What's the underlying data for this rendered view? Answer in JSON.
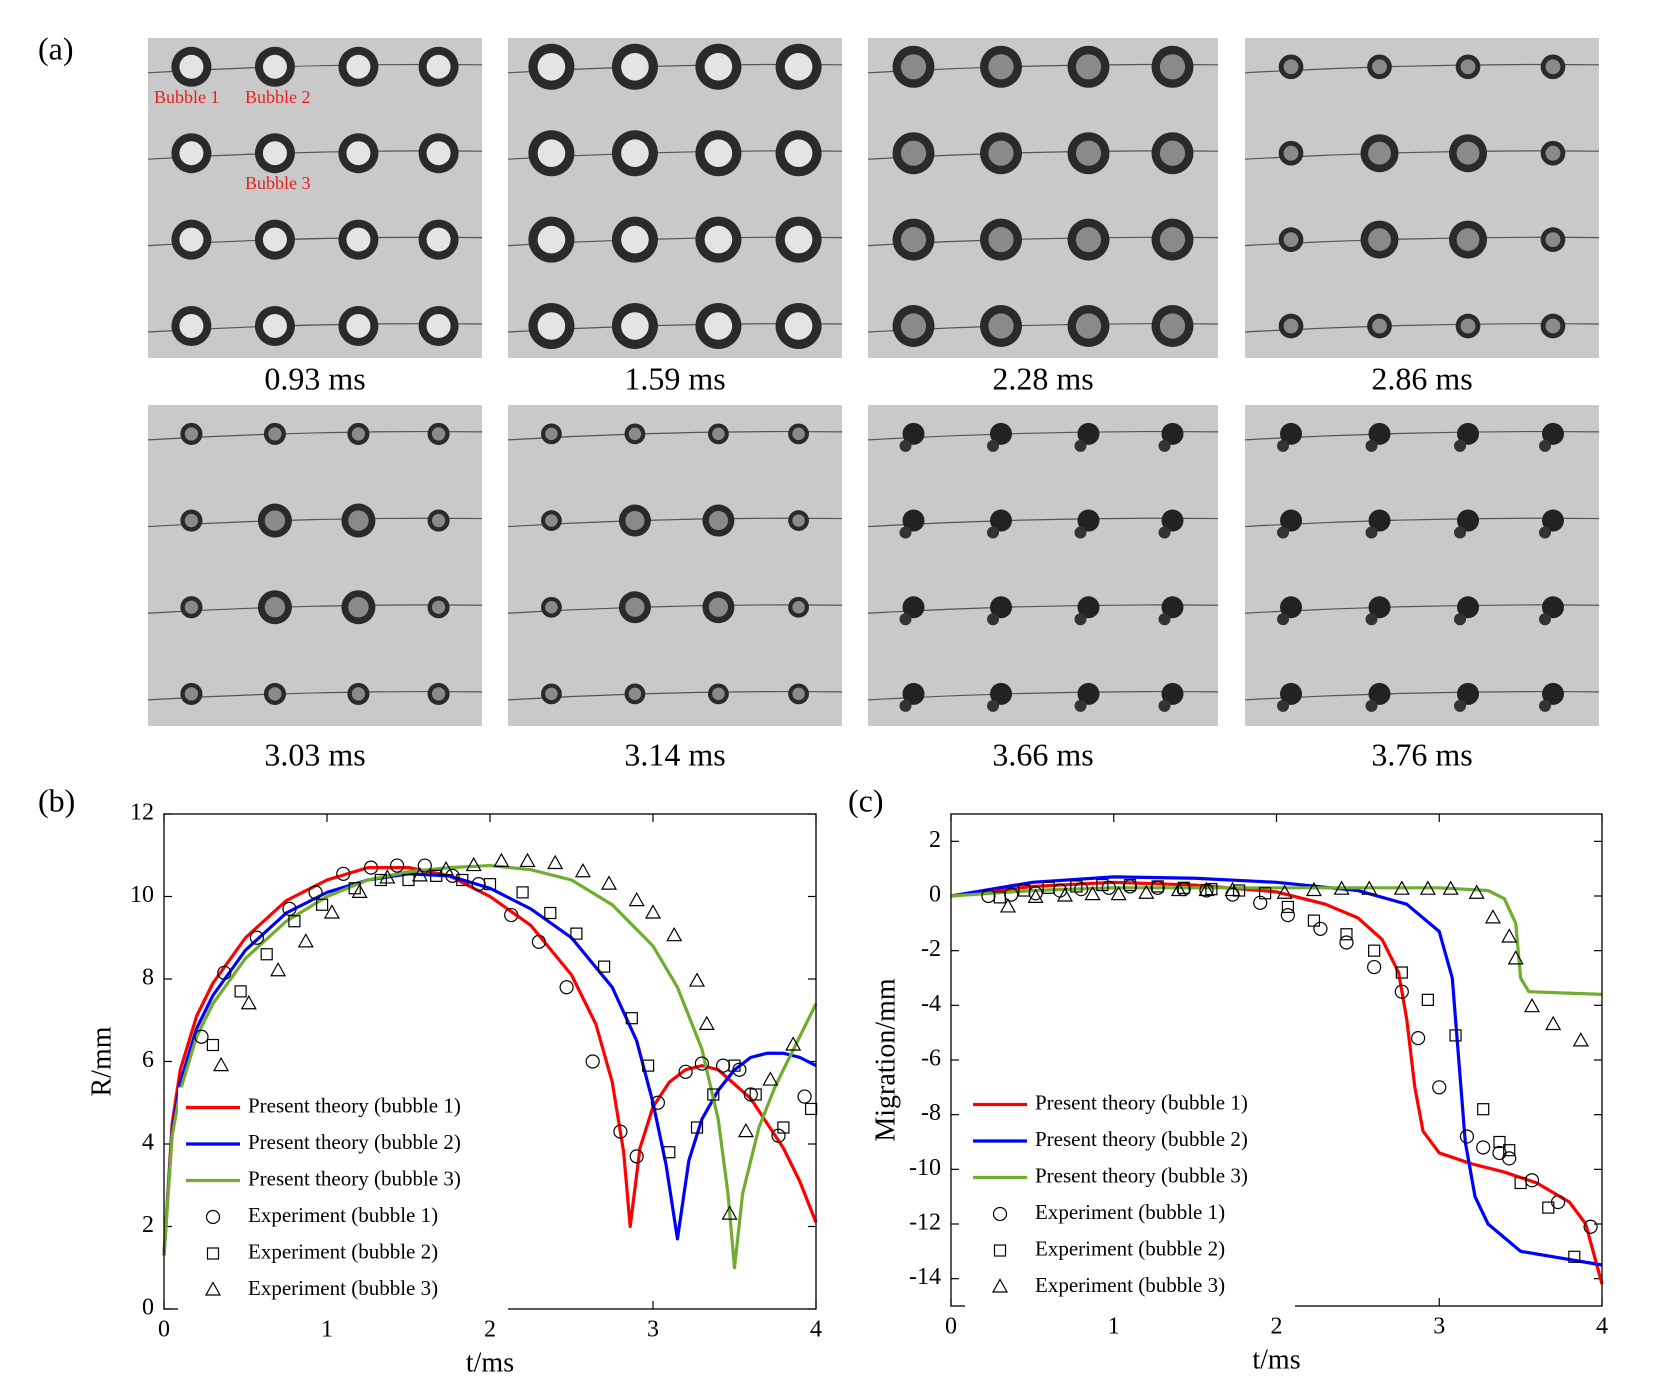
{
  "panel_a": {
    "label": "(a)",
    "times": [
      "0.93 ms",
      "1.59 ms",
      "2.28 ms",
      "2.86 ms",
      "3.03 ms",
      "3.14 ms",
      "3.66 ms",
      "3.76 ms"
    ],
    "annotations": [
      "Bubble 1",
      "Bubble 2",
      "Bubble 3"
    ]
  },
  "chart_data": [
    {
      "type": "line",
      "panel_label": "(b)",
      "xlabel": "t/ms",
      "ylabel": "R/mm",
      "xlim": [
        0,
        4
      ],
      "ylim": [
        0,
        12
      ],
      "xticks": [
        0,
        1,
        2,
        3,
        4
      ],
      "yticks": [
        0,
        2,
        4,
        6,
        8,
        10,
        12
      ],
      "legend": "lower left",
      "series": [
        {
          "name": "Present theory (bubble 1)",
          "type": "line",
          "color": "#ff0000",
          "x": [
            0,
            0.05,
            0.1,
            0.2,
            0.3,
            0.5,
            0.75,
            1,
            1.25,
            1.5,
            1.75,
            2,
            2.25,
            2.5,
            2.65,
            2.75,
            2.82,
            2.86,
            2.92,
            3.0,
            3.1,
            3.2,
            3.3,
            3.4,
            3.6,
            3.8,
            3.9,
            4.0
          ],
          "values": [
            1.3,
            4.5,
            5.8,
            7.1,
            7.9,
            9.0,
            9.9,
            10.4,
            10.7,
            10.7,
            10.5,
            10.0,
            9.3,
            8.1,
            6.9,
            5.5,
            3.8,
            2.0,
            3.9,
            4.9,
            5.5,
            5.8,
            5.9,
            5.8,
            5.1,
            3.9,
            3.1,
            2.1
          ]
        },
        {
          "name": "Present theory (bubble 2)",
          "type": "line",
          "color": "#0000ff",
          "x": [
            0,
            0.05,
            0.1,
            0.2,
            0.3,
            0.5,
            0.75,
            1,
            1.25,
            1.5,
            1.75,
            2,
            2.25,
            2.5,
            2.75,
            2.9,
            3.0,
            3.08,
            3.15,
            3.22,
            3.3,
            3.4,
            3.5,
            3.6,
            3.7,
            3.8,
            3.9,
            4.0
          ],
          "values": [
            1.3,
            4.3,
            5.5,
            6.8,
            7.6,
            8.7,
            9.6,
            10.1,
            10.4,
            10.55,
            10.5,
            10.2,
            9.7,
            9.0,
            7.8,
            6.5,
            5.0,
            3.5,
            1.7,
            3.6,
            4.6,
            5.3,
            5.8,
            6.1,
            6.2,
            6.2,
            6.1,
            5.9
          ]
        },
        {
          "name": "Present theory (bubble 3)",
          "type": "line",
          "color": "#70ad2e",
          "x": [
            0,
            0.05,
            0.1,
            0.2,
            0.3,
            0.5,
            0.75,
            1,
            1.25,
            1.5,
            1.75,
            2,
            2.25,
            2.5,
            2.75,
            3.0,
            3.15,
            3.3,
            3.4,
            3.46,
            3.5,
            3.55,
            3.65,
            3.75,
            3.85,
            4.0
          ],
          "values": [
            1.3,
            4.2,
            5.3,
            6.6,
            7.4,
            8.5,
            9.4,
            10.0,
            10.4,
            10.6,
            10.7,
            10.75,
            10.65,
            10.4,
            9.8,
            8.8,
            7.8,
            6.3,
            4.6,
            2.8,
            1.0,
            2.8,
            4.4,
            5.4,
            6.2,
            7.4
          ]
        },
        {
          "name": "Experiment (bubble 1)",
          "type": "scatter",
          "marker": "circle",
          "color": "#000000",
          "x": [
            0.23,
            0.37,
            0.57,
            0.77,
            0.93,
            1.1,
            1.27,
            1.43,
            1.6,
            1.77,
            1.93,
            2.13,
            2.3,
            2.47,
            2.63,
            2.8,
            2.9,
            3.03,
            3.2,
            3.3,
            3.43,
            3.53,
            3.6,
            3.77,
            3.93
          ],
          "values": [
            6.6,
            8.15,
            9.0,
            9.7,
            10.1,
            10.55,
            10.7,
            10.75,
            10.75,
            10.5,
            10.3,
            9.55,
            8.9,
            7.8,
            6.0,
            4.3,
            3.7,
            5.0,
            5.75,
            5.95,
            5.9,
            5.8,
            5.2,
            4.2,
            5.15
          ]
        },
        {
          "name": "Experiment (bubble 2)",
          "type": "scatter",
          "marker": "square",
          "color": "#000000",
          "x": [
            0.3,
            0.47,
            0.63,
            0.8,
            0.97,
            1.17,
            1.33,
            1.5,
            1.67,
            1.83,
            2.0,
            2.2,
            2.37,
            2.53,
            2.7,
            2.87,
            2.97,
            3.1,
            3.27,
            3.37,
            3.5,
            3.63,
            3.8,
            3.97
          ],
          "values": [
            6.4,
            7.7,
            8.6,
            9.4,
            9.8,
            10.2,
            10.4,
            10.4,
            10.5,
            10.4,
            10.3,
            10.1,
            9.6,
            9.1,
            8.3,
            7.05,
            5.9,
            3.8,
            4.4,
            5.2,
            5.9,
            5.2,
            4.4,
            4.85
          ]
        },
        {
          "name": "Experiment (bubble 3)",
          "type": "scatter",
          "marker": "triangle",
          "color": "#000000",
          "x": [
            0.35,
            0.52,
            0.7,
            0.87,
            1.03,
            1.2,
            1.37,
            1.57,
            1.73,
            1.9,
            2.07,
            2.23,
            2.4,
            2.57,
            2.73,
            2.9,
            3.0,
            3.13,
            3.27,
            3.33,
            3.47,
            3.57,
            3.72,
            3.86
          ],
          "values": [
            5.9,
            7.4,
            8.2,
            8.9,
            9.6,
            10.1,
            10.45,
            10.5,
            10.65,
            10.75,
            10.85,
            10.85,
            10.8,
            10.6,
            10.3,
            9.9,
            9.6,
            9.05,
            7.95,
            6.9,
            2.3,
            4.3,
            5.55,
            6.4
          ]
        }
      ]
    },
    {
      "type": "line",
      "panel_label": "(c)",
      "xlabel": "t/ms",
      "ylabel": "Migration/mm",
      "xlim": [
        0,
        4
      ],
      "ylim": [
        -15,
        3
      ],
      "xticks": [
        0,
        1,
        2,
        3,
        4
      ],
      "yticks": [
        -14,
        -12,
        -10,
        -8,
        -6,
        -4,
        -2,
        0,
        2
      ],
      "legend": "lower left",
      "series": [
        {
          "name": "Present theory (bubble 1)",
          "type": "line",
          "color": "#ff0000",
          "x": [
            0,
            0.5,
            1,
            1.5,
            2,
            2.3,
            2.5,
            2.65,
            2.75,
            2.8,
            2.85,
            2.9,
            3.0,
            3.2,
            3.4,
            3.6,
            3.8,
            3.9,
            4.0
          ],
          "values": [
            0,
            0.35,
            0.5,
            0.4,
            0.15,
            -0.3,
            -0.8,
            -1.6,
            -2.8,
            -4.5,
            -7,
            -8.6,
            -9.4,
            -9.8,
            -10.1,
            -10.5,
            -11.2,
            -12,
            -14.2
          ]
        },
        {
          "name": "Present theory (bubble 2)",
          "type": "line",
          "color": "#0000ff",
          "x": [
            0,
            0.5,
            1,
            1.5,
            2,
            2.5,
            2.8,
            3.0,
            3.08,
            3.12,
            3.16,
            3.22,
            3.3,
            3.5,
            4.0
          ],
          "values": [
            0,
            0.5,
            0.7,
            0.65,
            0.5,
            0.2,
            -0.3,
            -1.3,
            -3,
            -6,
            -9,
            -11,
            -12,
            -13,
            -13.5
          ]
        },
        {
          "name": "Present theory (bubble 3)",
          "type": "line",
          "color": "#70ad2e",
          "x": [
            0,
            0.5,
            1,
            2,
            3,
            3.3,
            3.4,
            3.47,
            3.5,
            3.55,
            4.0
          ],
          "values": [
            0,
            0.2,
            0.3,
            0.3,
            0.3,
            0.2,
            -0.1,
            -1,
            -3,
            -3.5,
            -3.6
          ]
        },
        {
          "name": "Experiment (bubble 1)",
          "type": "scatter",
          "marker": "circle",
          "color": "#000000",
          "x": [
            0.23,
            0.37,
            0.52,
            0.67,
            0.8,
            0.97,
            1.1,
            1.27,
            1.43,
            1.57,
            1.73,
            1.9,
            2.07,
            2.27,
            2.43,
            2.6,
            2.77,
            2.87,
            3.0,
            3.17,
            3.27,
            3.37,
            3.43,
            3.57,
            3.73,
            3.93
          ],
          "values": [
            0,
            0.05,
            0.1,
            0.2,
            0.25,
            0.3,
            0.35,
            0.3,
            0.25,
            0.2,
            0.05,
            -0.25,
            -0.7,
            -1.2,
            -1.7,
            -2.6,
            -3.5,
            -5.2,
            -7.0,
            -8.8,
            -9.2,
            -9.4,
            -9.6,
            -10.4,
            -11.2,
            -12.1
          ]
        },
        {
          "name": "Experiment (bubble 2)",
          "type": "scatter",
          "marker": "square",
          "color": "#000000",
          "x": [
            0.3,
            0.45,
            0.6,
            0.77,
            0.93,
            1.1,
            1.27,
            1.43,
            1.6,
            1.77,
            1.93,
            2.07,
            2.23,
            2.43,
            2.6,
            2.77,
            2.93,
            3.1,
            3.27,
            3.37,
            3.43,
            3.5,
            3.67,
            3.83
          ],
          "values": [
            -0.05,
            0.2,
            0.3,
            0.35,
            0.4,
            0.4,
            0.35,
            0.3,
            0.25,
            0.2,
            0.1,
            -0.4,
            -0.9,
            -1.4,
            -2.0,
            -2.8,
            -3.8,
            -5.1,
            -7.8,
            -9.0,
            -9.3,
            -10.5,
            -11.4,
            -13.2
          ]
        },
        {
          "name": "Experiment (bubble 3)",
          "type": "scatter",
          "marker": "triangle",
          "color": "#000000",
          "x": [
            0.35,
            0.52,
            0.7,
            0.87,
            1.03,
            1.2,
            1.4,
            1.57,
            1.73,
            2.05,
            2.23,
            2.4,
            2.57,
            2.77,
            2.93,
            3.07,
            3.23,
            3.33,
            3.43,
            3.47,
            3.57,
            3.7,
            3.87
          ],
          "values": [
            -0.4,
            -0.05,
            0,
            0.05,
            0.05,
            0.1,
            0.2,
            0.2,
            0.2,
            0.1,
            0.2,
            0.25,
            0.25,
            0.25,
            0.25,
            0.25,
            0.1,
            -0.8,
            -1.5,
            -2.3,
            -4.05,
            -4.7,
            -5.3
          ]
        }
      ]
    }
  ]
}
